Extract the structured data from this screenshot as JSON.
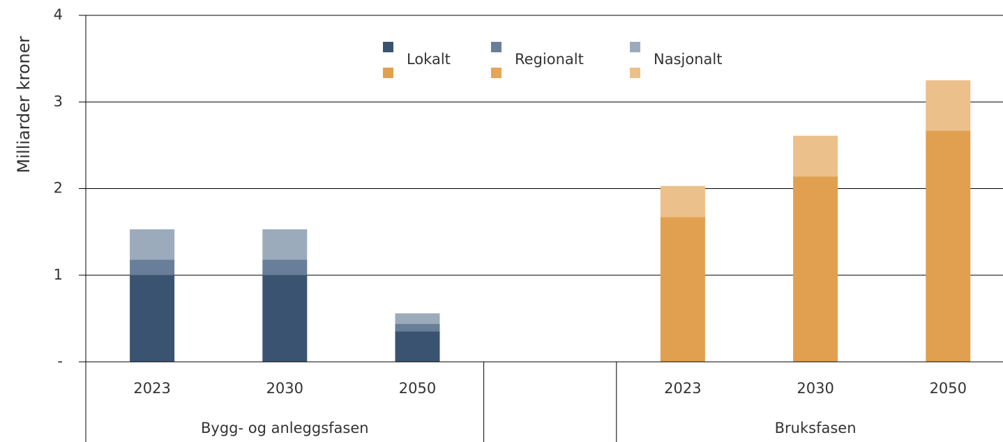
{
  "chart_data": {
    "type": "stacked_bar",
    "y_label": "Milliarder kroner",
    "ylim": [
      0,
      4
    ],
    "yticks": [
      {
        "value": 0,
        "label": "-"
      },
      1,
      2,
      3,
      4
    ],
    "grid": true,
    "groups": [
      {
        "label": "Bygg- og anleggsfasen",
        "categories": [
          "2023",
          "2030",
          "2050"
        ]
      },
      {
        "label": "Bruksfasen",
        "categories": [
          "2023",
          "2030",
          "2050"
        ]
      }
    ],
    "series": [
      {
        "name": "Lokalt",
        "colors": [
          "#3a5371",
          "#e0a050"
        ],
        "values": [
          1.0,
          1.0,
          0.35,
          1.67,
          2.14,
          2.67
        ]
      },
      {
        "name": "Regionalt",
        "colors": [
          "#697f99",
          "#e6a55b"
        ],
        "values": [
          0.18,
          0.18,
          0.09,
          0,
          0,
          0
        ]
      },
      {
        "name": "Nasjonalt",
        "colors": [
          "#9cabbc",
          "#ecc08a"
        ],
        "values": [
          0.35,
          0.35,
          0.12,
          0.36,
          0.47,
          0.58
        ]
      }
    ]
  }
}
